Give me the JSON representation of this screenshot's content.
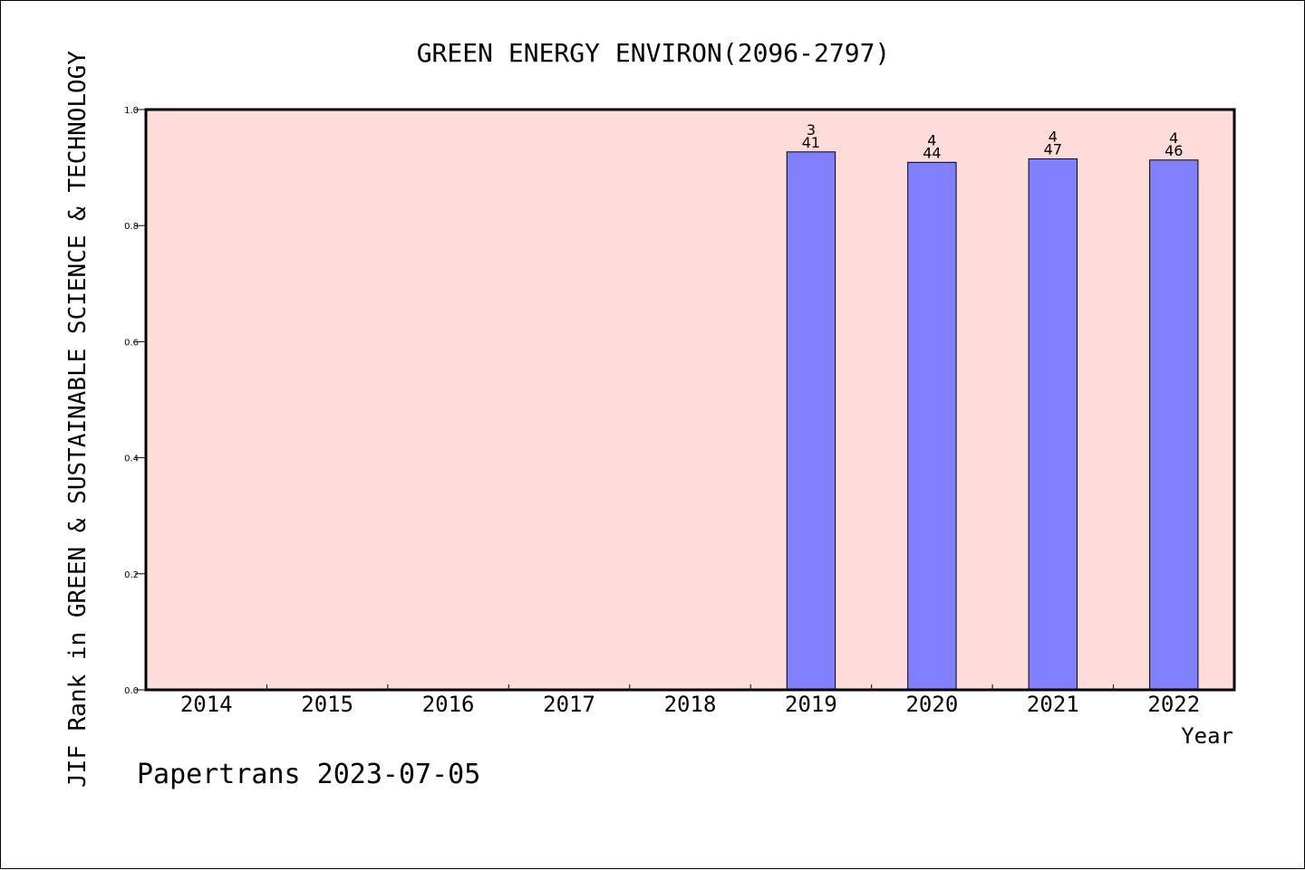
{
  "chart_data": {
    "type": "bar",
    "title": "GREEN ENERGY ENVIRON(2096-2797)",
    "xlabel": "Year",
    "ylabel": "JIF Rank in GREEN & SUSTAINABLE SCIENCE & TECHNOLOGY",
    "categories": [
      "2014",
      "2015",
      "2016",
      "2017",
      "2018",
      "2019",
      "2020",
      "2021",
      "2022"
    ],
    "values": [
      null,
      null,
      null,
      null,
      null,
      0.927,
      0.909,
      0.915,
      0.913
    ],
    "rank_labels": [
      null,
      null,
      null,
      null,
      null,
      {
        "rank": "3",
        "total": "41"
      },
      {
        "rank": "4",
        "total": "44"
      },
      {
        "rank": "4",
        "total": "47"
      },
      {
        "rank": "4",
        "total": "46"
      }
    ],
    "ylim": [
      0,
      1.0
    ],
    "yticks": [
      "0.0",
      "0.2",
      "0.4",
      "0.6",
      "0.8",
      "1.0"
    ],
    "colors": {
      "plot_bg": "#fddcd9",
      "bar": "#8080ff",
      "axis": "#000000"
    },
    "footer": "Papertrans 2023-07-05"
  }
}
